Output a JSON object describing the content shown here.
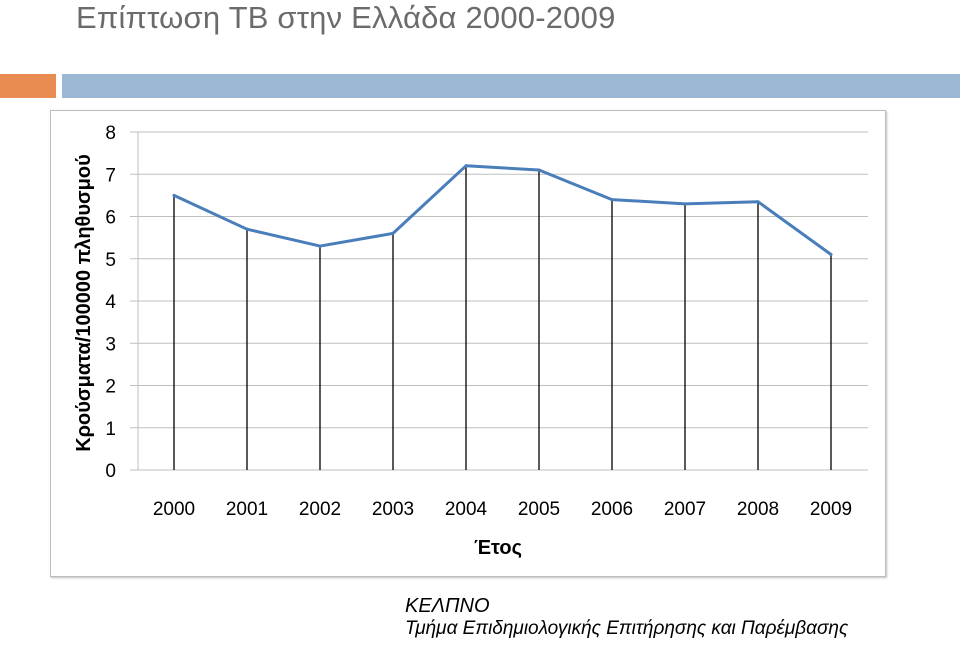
{
  "header": {
    "title": "Επίπτωση  ΤΒ στην Ελλάδα 2000-2009",
    "accent_colors": [
      "#e98c52",
      "#9cb8d4"
    ]
  },
  "source": {
    "organization": "ΚΕΛΠΝΟ",
    "department": "Τμήμα Επιδημιολογικής Επιτήρησης και Παρέμβασης"
  },
  "chart_data": {
    "type": "line",
    "title": "",
    "xlabel": "Έτος",
    "ylabel": "Κρούσματα/100000 πληθυσμού",
    "categories": [
      "2000",
      "2001",
      "2002",
      "2003",
      "2004",
      "2005",
      "2006",
      "2007",
      "2008",
      "2009"
    ],
    "series": [
      {
        "color": "#4a7ebb",
        "values": [
          6.5,
          5.7,
          5.3,
          5.6,
          7.2,
          7.1,
          6.4,
          6.3,
          6.35,
          5.1
        ]
      }
    ],
    "ylim": [
      0,
      8
    ],
    "yticks": [
      "0",
      "1",
      "2",
      "3",
      "4",
      "5",
      "6",
      "7",
      "8"
    ],
    "drop_lines": true,
    "grid": true,
    "legend": "none"
  }
}
